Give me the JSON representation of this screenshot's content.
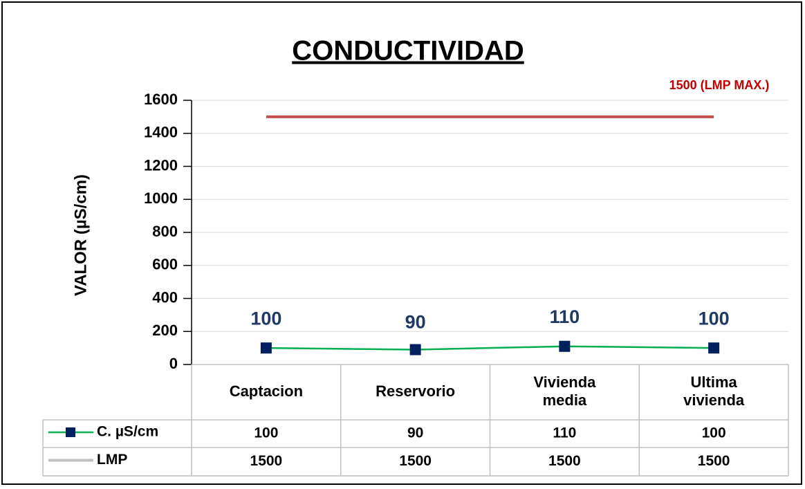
{
  "chart_data": {
    "type": "line",
    "title": "CONDUCTIVIDAD",
    "annotation": "1500 (LMP MAX.)",
    "y_label": "VALOR  (µS/cm)",
    "categories": [
      "Captacion",
      "Reservorio",
      "Vivienda media",
      "Ultima vivienda"
    ],
    "series": [
      {
        "name": "C. µS/cm",
        "color": "#00b050",
        "marker_color": "#002060",
        "values": [
          100,
          90,
          110,
          100
        ]
      },
      {
        "name": "LMP",
        "color": "#c0504d",
        "legend_color": "#bfbfbf",
        "values": [
          1500,
          1500,
          1500,
          1500
        ]
      }
    ],
    "ylim": [
      0,
      1600
    ],
    "yticks": [
      0,
      200,
      400,
      600,
      800,
      1000,
      1200,
      1400,
      1600
    ],
    "grid": true,
    "data_table": true
  }
}
